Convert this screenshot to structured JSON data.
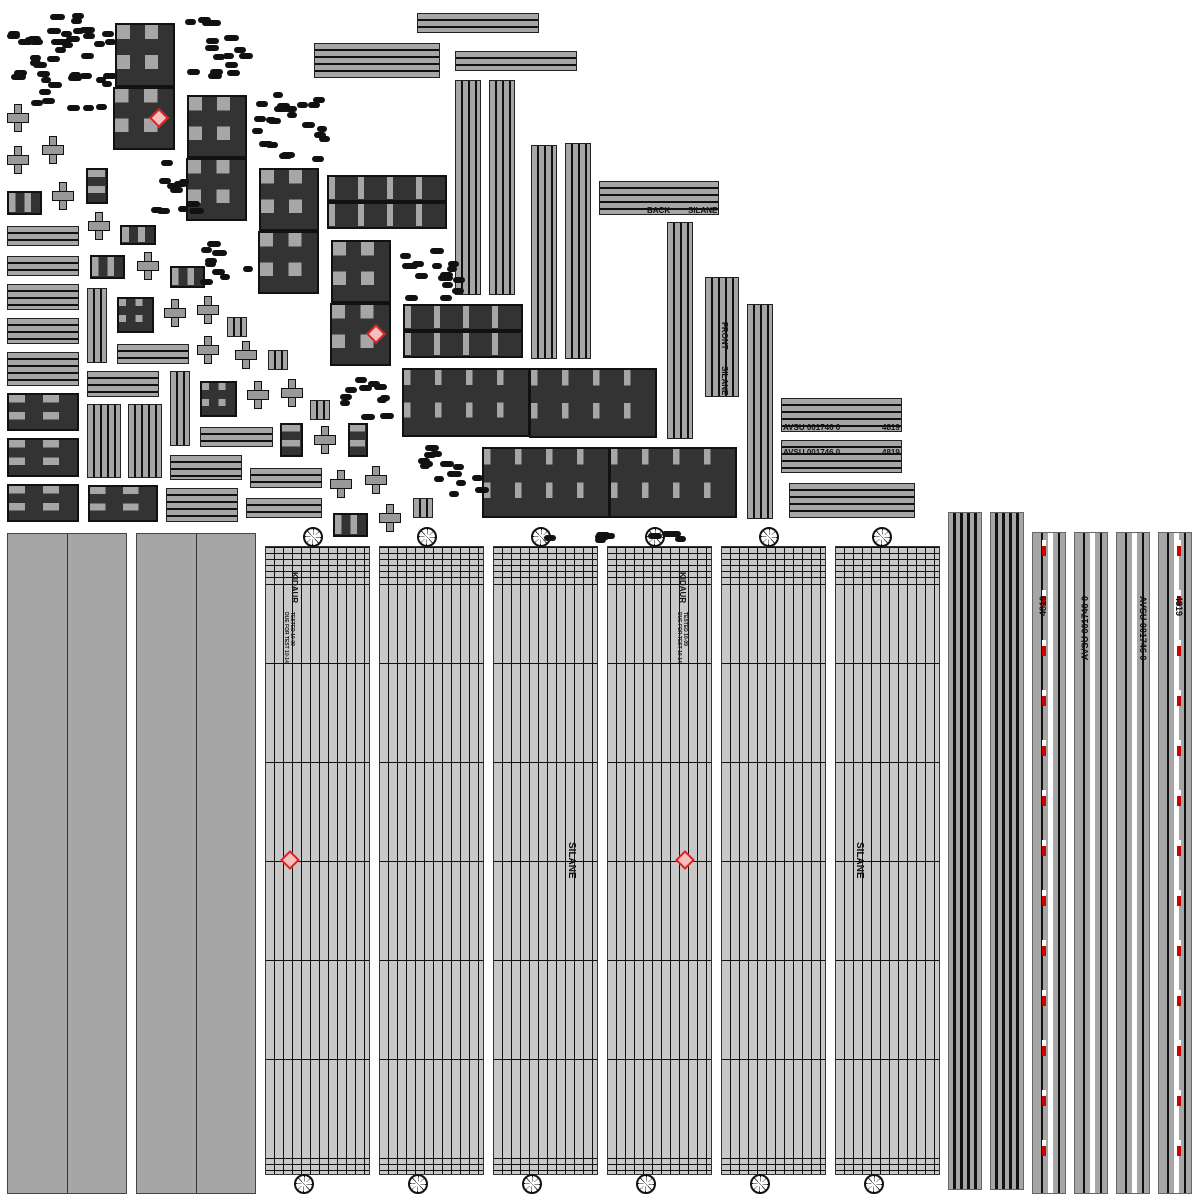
{
  "colors": {
    "panel_gray": "#a6a6a6",
    "tube_gray": "#c8c8c8",
    "line": "#111111",
    "hazard_red": "#e02020",
    "marker_red": "#cc0000"
  },
  "labels": {
    "back": "BACK",
    "silane": "SILANE",
    "front": "FRONT",
    "container_id": "AVSU 001746 0",
    "un_number": "4819",
    "maker": "KIDAUR",
    "tested": "TESTED 10-09",
    "due_for_test": "DUE FOR TEST 10-14"
  },
  "icons": {
    "hazard": "hazard-diamond-icon",
    "wheel": "wheel-icon"
  }
}
